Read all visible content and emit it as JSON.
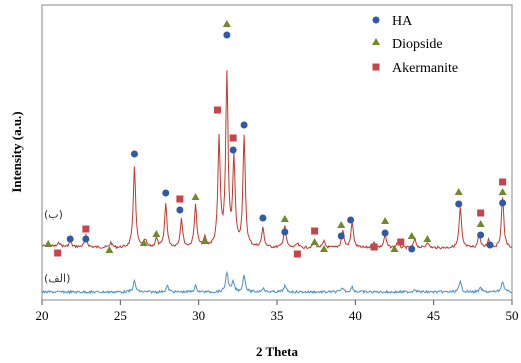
{
  "chart_data": {
    "type": "line",
    "xlabel": "2 Theta",
    "ylabel": "Intensity (a.u.)",
    "xlim": [
      20,
      50
    ],
    "xticks": [
      20,
      25,
      30,
      35,
      40,
      45,
      50
    ],
    "y_ticks_shown": false,
    "grid": false,
    "legend": {
      "placement": "top-right",
      "entries": [
        {
          "label": "HA",
          "marker": "circle",
          "color": "#2e5aa8"
        },
        {
          "label": "Diopside",
          "marker": "triangle",
          "color": "#6f8a2a"
        },
        {
          "label": "Akermanite",
          "marker": "square",
          "color": "#c9444a"
        }
      ]
    },
    "series": [
      {
        "label": "(ب)",
        "color": "#c0392b",
        "baseline": 248,
        "peaks": [
          {
            "x": 20.4,
            "h": 3
          },
          {
            "x": 21.1,
            "h": 4
          },
          {
            "x": 21.8,
            "h": 5
          },
          {
            "x": 22.8,
            "h": 11
          },
          {
            "x": 24.4,
            "h": 5
          },
          {
            "x": 25.9,
            "h": 82
          },
          {
            "x": 26.6,
            "h": 7
          },
          {
            "x": 27.3,
            "h": 9
          },
          {
            "x": 27.9,
            "h": 44
          },
          {
            "x": 28.9,
            "h": 29
          },
          {
            "x": 29.8,
            "h": 43
          },
          {
            "x": 30.4,
            "h": 9
          },
          {
            "x": 31.3,
            "h": 107
          },
          {
            "x": 31.8,
            "h": 170
          },
          {
            "x": 32.25,
            "h": 85
          },
          {
            "x": 32.9,
            "h": 109
          },
          {
            "x": 34.1,
            "h": 19
          },
          {
            "x": 35.5,
            "h": 22
          },
          {
            "x": 36.3,
            "h": 4
          },
          {
            "x": 37.4,
            "h": 7
          },
          {
            "x": 38.0,
            "h": 6
          },
          {
            "x": 39.2,
            "h": 17
          },
          {
            "x": 39.8,
            "h": 26
          },
          {
            "x": 41.2,
            "h": 5
          },
          {
            "x": 41.9,
            "h": 13
          },
          {
            "x": 42.7,
            "h": 6
          },
          {
            "x": 43.8,
            "h": 9
          },
          {
            "x": 44.6,
            "h": 6
          },
          {
            "x": 46.7,
            "h": 40
          },
          {
            "x": 47.9,
            "h": 13
          },
          {
            "x": 48.5,
            "h": 8
          },
          {
            "x": 49.4,
            "h": 51
          }
        ]
      },
      {
        "label": "(الف)",
        "color": "#4a90c8",
        "baseline": 292,
        "peaks": [
          {
            "x": 25.9,
            "h": 11
          },
          {
            "x": 28.0,
            "h": 6
          },
          {
            "x": 29.8,
            "h": 6
          },
          {
            "x": 31.8,
            "h": 20
          },
          {
            "x": 32.2,
            "h": 10
          },
          {
            "x": 32.9,
            "h": 17
          },
          {
            "x": 34.1,
            "h": 4
          },
          {
            "x": 35.5,
            "h": 6
          },
          {
            "x": 39.2,
            "h": 4
          },
          {
            "x": 39.8,
            "h": 5
          },
          {
            "x": 43.8,
            "h": 3
          },
          {
            "x": 46.7,
            "h": 10
          },
          {
            "x": 48.0,
            "h": 4
          },
          {
            "x": 49.4,
            "h": 11
          }
        ]
      }
    ],
    "phase_markers": [
      {
        "phase": "Diopside",
        "x": 20.4,
        "y": 244
      },
      {
        "phase": "Akermanite",
        "x": 21.0,
        "y": 253
      },
      {
        "phase": "HA",
        "x": 21.8,
        "y": 239
      },
      {
        "phase": "Akermanite",
        "x": 22.8,
        "y": 229
      },
      {
        "phase": "HA",
        "x": 22.8,
        "y": 239
      },
      {
        "phase": "Diopside",
        "x": 24.3,
        "y": 250
      },
      {
        "phase": "HA",
        "x": 25.9,
        "y": 154
      },
      {
        "phase": "Diopside",
        "x": 26.5,
        "y": 243
      },
      {
        "phase": "Diopside",
        "x": 27.3,
        "y": 234
      },
      {
        "phase": "HA",
        "x": 27.9,
        "y": 193
      },
      {
        "phase": "HA",
        "x": 28.8,
        "y": 210
      },
      {
        "phase": "Akermanite",
        "x": 28.8,
        "y": 199
      },
      {
        "phase": "Diopside",
        "x": 29.8,
        "y": 197
      },
      {
        "phase": "Diopside",
        "x": 30.4,
        "y": 241
      },
      {
        "phase": "Akermanite",
        "x": 31.2,
        "y": 110
      },
      {
        "phase": "Diopside",
        "x": 31.8,
        "y": 24
      },
      {
        "phase": "HA",
        "x": 31.8,
        "y": 35
      },
      {
        "phase": "Akermanite",
        "x": 32.2,
        "y": 138
      },
      {
        "phase": "HA",
        "x": 32.2,
        "y": 150
      },
      {
        "phase": "HA",
        "x": 32.9,
        "y": 125
      },
      {
        "phase": "HA",
        "x": 34.1,
        "y": 218
      },
      {
        "phase": "Diopside",
        "x": 35.5,
        "y": 219
      },
      {
        "phase": "HA",
        "x": 35.5,
        "y": 232
      },
      {
        "phase": "Akermanite",
        "x": 36.3,
        "y": 254
      },
      {
        "phase": "Akermanite",
        "x": 37.4,
        "y": 231
      },
      {
        "phase": "Diopside",
        "x": 37.4,
        "y": 242
      },
      {
        "phase": "Diopside",
        "x": 38.0,
        "y": 249
      },
      {
        "phase": "Diopside",
        "x": 39.1,
        "y": 225
      },
      {
        "phase": "HA",
        "x": 39.1,
        "y": 236
      },
      {
        "phase": "HA",
        "x": 39.7,
        "y": 220
      },
      {
        "phase": "Diopside",
        "x": 41.2,
        "y": 247
      },
      {
        "phase": "Akermanite",
        "x": 41.2,
        "y": 247
      },
      {
        "phase": "Diopside",
        "x": 41.9,
        "y": 221
      },
      {
        "phase": "HA",
        "x": 41.9,
        "y": 233
      },
      {
        "phase": "Diopside",
        "x": 42.5,
        "y": 249
      },
      {
        "phase": "Akermanite",
        "x": 42.9,
        "y": 242
      },
      {
        "phase": "Diopside",
        "x": 43.6,
        "y": 236
      },
      {
        "phase": "HA",
        "x": 43.6,
        "y": 249
      },
      {
        "phase": "Diopside",
        "x": 44.6,
        "y": 239
      },
      {
        "phase": "Diopside",
        "x": 46.6,
        "y": 192
      },
      {
        "phase": "HA",
        "x": 46.6,
        "y": 204
      },
      {
        "phase": "Akermanite",
        "x": 48.0,
        "y": 213
      },
      {
        "phase": "Diopside",
        "x": 48.0,
        "y": 224
      },
      {
        "phase": "HA",
        "x": 48.0,
        "y": 235
      },
      {
        "phase": "HA",
        "x": 48.6,
        "y": 245
      },
      {
        "phase": "Akermanite",
        "x": 49.4,
        "y": 182
      },
      {
        "phase": "Diopside",
        "x": 49.4,
        "y": 192
      },
      {
        "phase": "HA",
        "x": 49.4,
        "y": 203
      }
    ]
  }
}
